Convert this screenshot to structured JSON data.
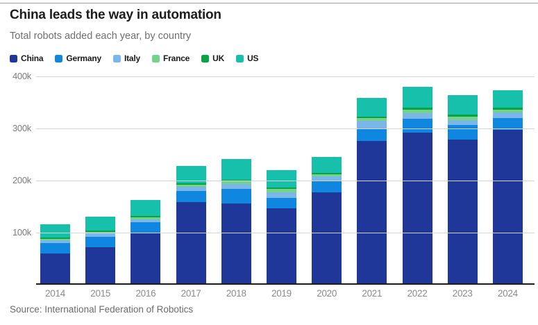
{
  "header": {
    "title": "China leads the way in automation",
    "subtitle": "Total robots added each year, by country"
  },
  "chart_data": {
    "type": "bar",
    "stacked": true,
    "title": "China leads the way in automation",
    "subtitle": "Total robots added each year, by country",
    "xlabel": "",
    "ylabel": "",
    "unit": "robots per year (values in thousands)",
    "categories": [
      "2014",
      "2015",
      "2016",
      "2017",
      "2018",
      "2019",
      "2020",
      "2021",
      "2022",
      "2023",
      "2024"
    ],
    "series": [
      {
        "name": "China",
        "color": "#1e3799",
        "values": [
          57,
          69,
          97,
          156,
          154,
          144,
          175,
          274,
          290,
          276,
          295
        ]
      },
      {
        "name": "Germany",
        "color": "#0f87e0",
        "values": [
          20,
          20,
          20,
          21,
          27,
          20,
          22,
          24,
          26,
          28,
          23
        ]
      },
      {
        "name": "Italy",
        "color": "#7ab6e8",
        "values": [
          6,
          7,
          6,
          8,
          10,
          11,
          8,
          14,
          11,
          10,
          10
        ]
      },
      {
        "name": "France",
        "color": "#72d389",
        "values": [
          3,
          3,
          4,
          5,
          6,
          7,
          5,
          6,
          7,
          6,
          6
        ]
      },
      {
        "name": "UK",
        "color": "#09a344",
        "values": [
          2,
          2,
          2,
          2,
          2,
          2,
          2,
          2,
          3,
          4,
          3
        ]
      },
      {
        "name": "US",
        "color": "#16c0ab",
        "values": [
          26,
          27,
          31,
          33,
          40,
          34,
          31,
          36,
          40,
          38,
          34
        ]
      }
    ],
    "totals": [
      114,
      128,
      160,
      225,
      239,
      218,
      243,
      356,
      377,
      362,
      371
    ],
    "yticks": [
      {
        "value": 400,
        "label": "400k"
      },
      {
        "value": 300,
        "label": "300k"
      },
      {
        "value": 200,
        "label": "200k"
      },
      {
        "value": 100,
        "label": "100k"
      }
    ],
    "ylim": [
      0,
      400
    ],
    "grid": true,
    "legend_position": "top",
    "legend": [
      "China",
      "Germany",
      "Italy",
      "France",
      "UK",
      "US"
    ]
  },
  "footer": {
    "source": "Source: International Federation of Robotics"
  }
}
